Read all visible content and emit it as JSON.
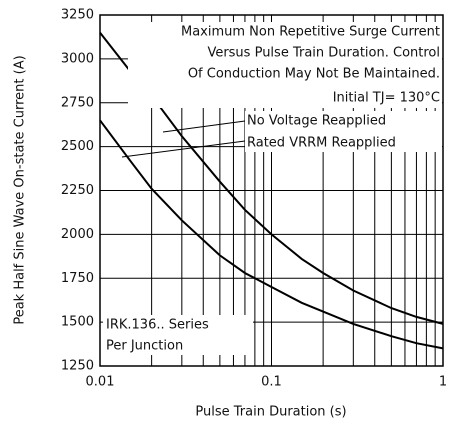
{
  "chart_data": {
    "type": "line",
    "xlabel": "Pulse Train Duration (s)",
    "ylabel": "Peak Half Sine Wave On-state Current (A)",
    "annotations": [
      "Maximum Non Repetitive Surge Current",
      "Versus Pulse Train Duration. Control",
      "Of Conduction May Not Be Maintained.",
      "Initial TJ= 130°C"
    ],
    "device_label": [
      "IRK.136.. Series",
      "Per Junction"
    ],
    "x": [
      0.01,
      0.015,
      0.02,
      0.03,
      0.05,
      0.07,
      0.1,
      0.15,
      0.2,
      0.3,
      0.5,
      0.7,
      1
    ],
    "series": [
      {
        "name": "No Voltage Reapplied",
        "color": "#000000",
        "values": [
          3150,
          2930,
          2790,
          2560,
          2300,
          2140,
          2000,
          1860,
          1780,
          1680,
          1580,
          1530,
          1490
        ]
      },
      {
        "name": "Rated VRRM Reapplied",
        "color": "#000000",
        "values": [
          2650,
          2420,
          2260,
          2080,
          1880,
          1780,
          1700,
          1610,
          1560,
          1490,
          1420,
          1380,
          1350
        ]
      }
    ],
    "xlim": [
      0.01,
      1
    ],
    "xticks": [
      0.01,
      0.1,
      1
    ],
    "xminor": [
      0.02,
      0.03,
      0.04,
      0.05,
      0.06,
      0.07,
      0.08,
      0.09,
      0.2,
      0.3,
      0.4,
      0.5,
      0.6,
      0.7,
      0.8,
      0.9
    ],
    "xlog": true,
    "ylim": [
      1250,
      3250
    ],
    "yticks": [
      1250,
      1500,
      1750,
      2000,
      2250,
      2500,
      2750,
      3000,
      3250
    ],
    "grid": true
  }
}
